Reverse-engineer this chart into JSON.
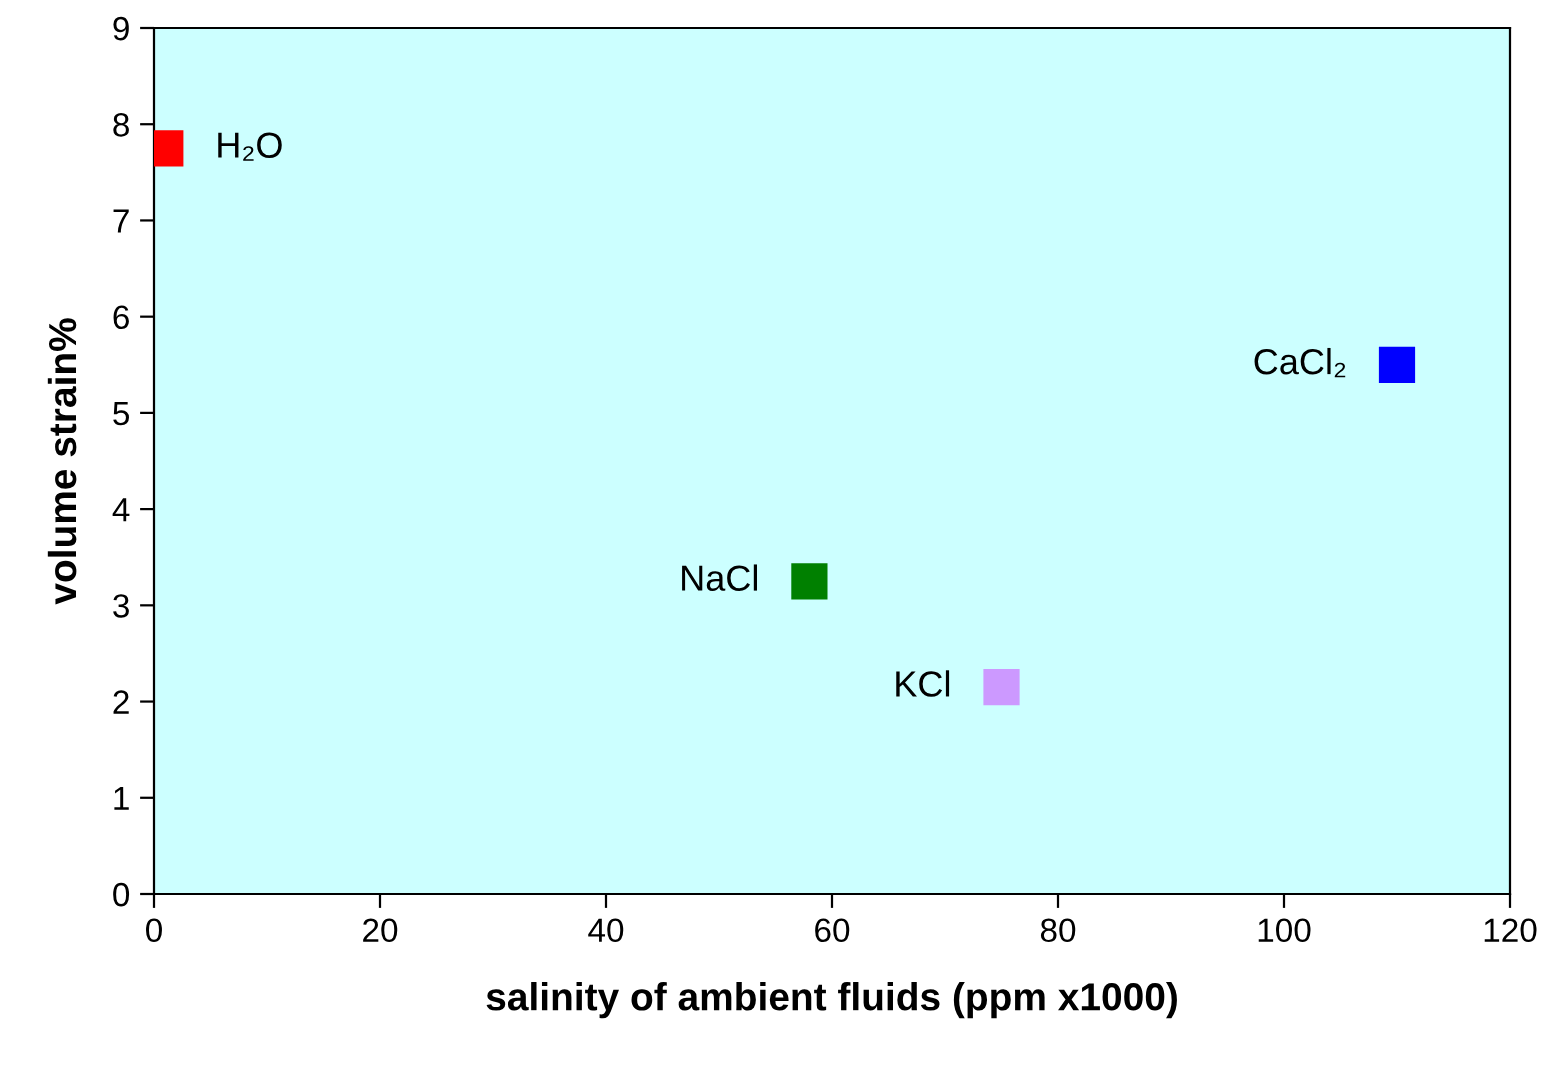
{
  "chart_data": {
    "type": "scatter",
    "xlabel": "salinity of ambient fluids (ppm x1000)",
    "ylabel": "volume strain%",
    "x": [
      1,
      58,
      75,
      110
    ],
    "values": [
      7.75,
      3.25,
      2.15,
      5.5
    ],
    "colors": [
      "#ff0000",
      "#008000",
      "#cc99ff",
      "#0000ff"
    ],
    "marker": "square",
    "xlim": [
      0,
      120
    ],
    "xticks": [
      0,
      20,
      40,
      60,
      80,
      100,
      120
    ],
    "ylim": [
      0,
      9
    ],
    "yticks": [
      0,
      1,
      2,
      3,
      4,
      5,
      6,
      7,
      8,
      9
    ],
    "grid": false,
    "legend": false,
    "annotations": [
      {
        "text": "H₂O",
        "x": 1,
        "y": 7.75
      },
      {
        "text": "NaCl",
        "x": 58,
        "y": 3.25
      },
      {
        "text": "KCl",
        "x": 75,
        "y": 2.15
      },
      {
        "text": "CaCl₂",
        "x": 110,
        "y": 5.5
      }
    ]
  }
}
